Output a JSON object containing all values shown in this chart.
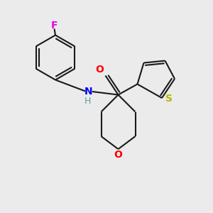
{
  "background_color": "#ebebeb",
  "bond_color": "#1a1a1a",
  "F_color": "#e800e8",
  "N_color": "#0000ff",
  "H_color": "#5f9ea0",
  "O_color": "#ff0000",
  "S_color": "#b8b800",
  "line_width": 1.5,
  "font_size": 10,
  "fig_w": 3.0,
  "fig_h": 3.0,
  "dpi": 100,
  "xlim": [
    0,
    10
  ],
  "ylim": [
    0,
    10
  ]
}
